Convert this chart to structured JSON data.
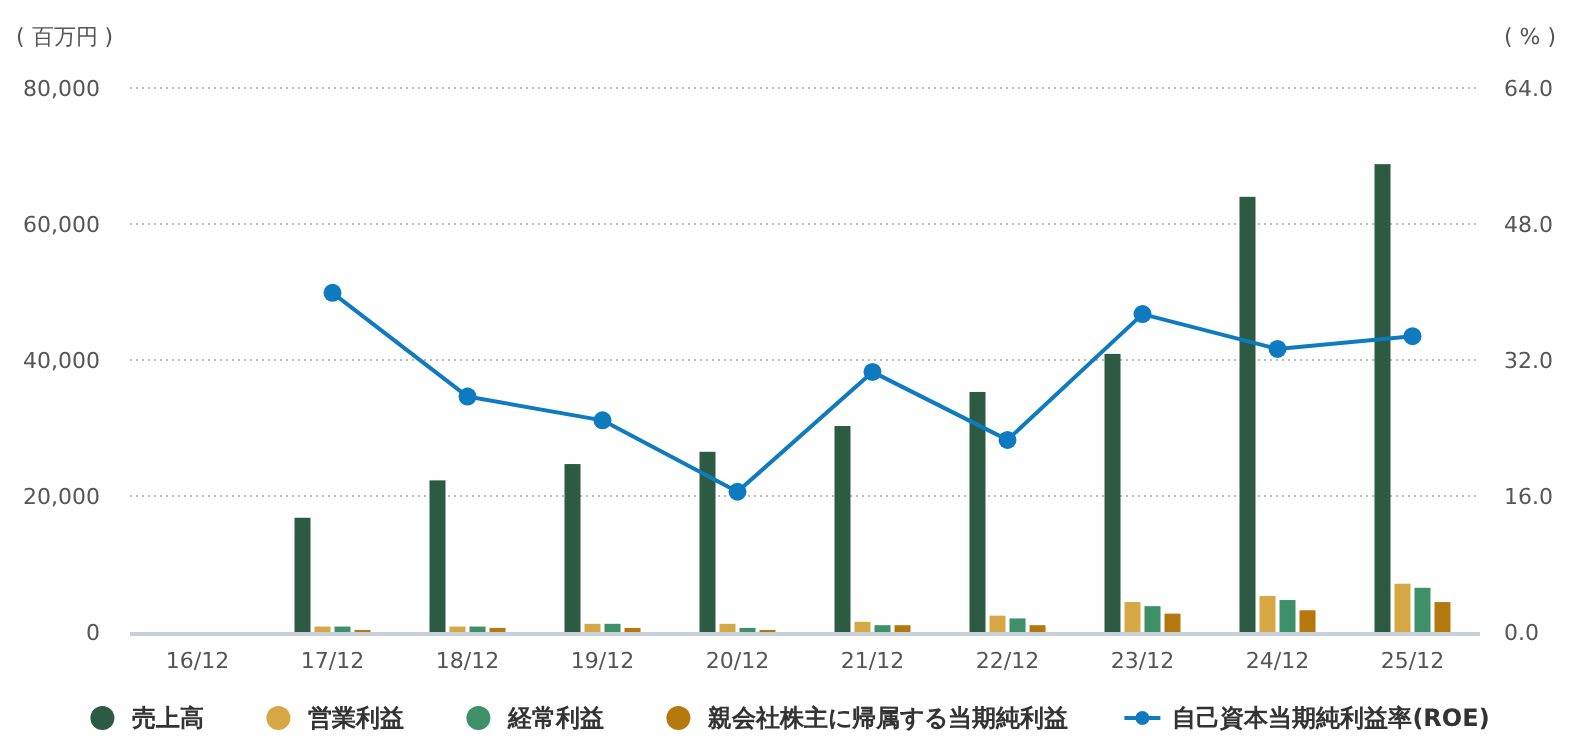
{
  "chart_data": {
    "type": "bar",
    "ylabel": "( 百万円 )",
    "y2label": "( % )",
    "categories": [
      "16/12",
      "17/12",
      "18/12",
      "19/12",
      "20/12",
      "21/12",
      "22/12",
      "23/12",
      "24/12",
      "25/12"
    ],
    "series": [
      {
        "name": "売上高",
        "color": "#2d5a43",
        "values": [
          null,
          16800,
          22300,
          24700,
          26500,
          30300,
          35300,
          40900,
          64000,
          68800
        ]
      },
      {
        "name": "営業利益",
        "color": "#d6a843",
        "values": [
          null,
          800,
          800,
          1200,
          1200,
          1500,
          2400,
          4400,
          5300,
          7100
        ]
      },
      {
        "name": "経常利益",
        "color": "#3d9068",
        "values": [
          null,
          800,
          800,
          1200,
          600,
          1000,
          2000,
          3800,
          4700,
          6500
        ]
      },
      {
        "name": "親会社株主に帰属する当期純利益",
        "color": "#b5780d",
        "values": [
          null,
          300,
          600,
          600,
          300,
          1000,
          1000,
          2700,
          3200,
          4400
        ]
      },
      {
        "name": "自己資本当期純利益率(ROE)",
        "type": "line",
        "axis": "y2",
        "marker": "circle",
        "color": "#0e7bc0",
        "values": [
          null,
          39.9,
          27.7,
          24.9,
          16.5,
          30.6,
          22.6,
          37.4,
          33.3,
          34.8
        ]
      }
    ],
    "ylim": [
      0,
      80000
    ],
    "yticks": [
      {
        "value": 0,
        "label": "0"
      },
      {
        "value": 20000,
        "label": "20,000"
      },
      {
        "value": 40000,
        "label": "40,000"
      },
      {
        "value": 60000,
        "label": "60,000"
      },
      {
        "value": 80000,
        "label": "80,000"
      }
    ],
    "y2lim": [
      0,
      64
    ],
    "y2ticks": [
      {
        "value": 0,
        "label": "0.0"
      },
      {
        "value": 16,
        "label": "16.0"
      },
      {
        "value": 32,
        "label": "32.0"
      },
      {
        "value": 48,
        "label": "48.0"
      },
      {
        "value": 64,
        "label": "64.0"
      }
    ],
    "grid": "y",
    "legend": "bottom"
  }
}
